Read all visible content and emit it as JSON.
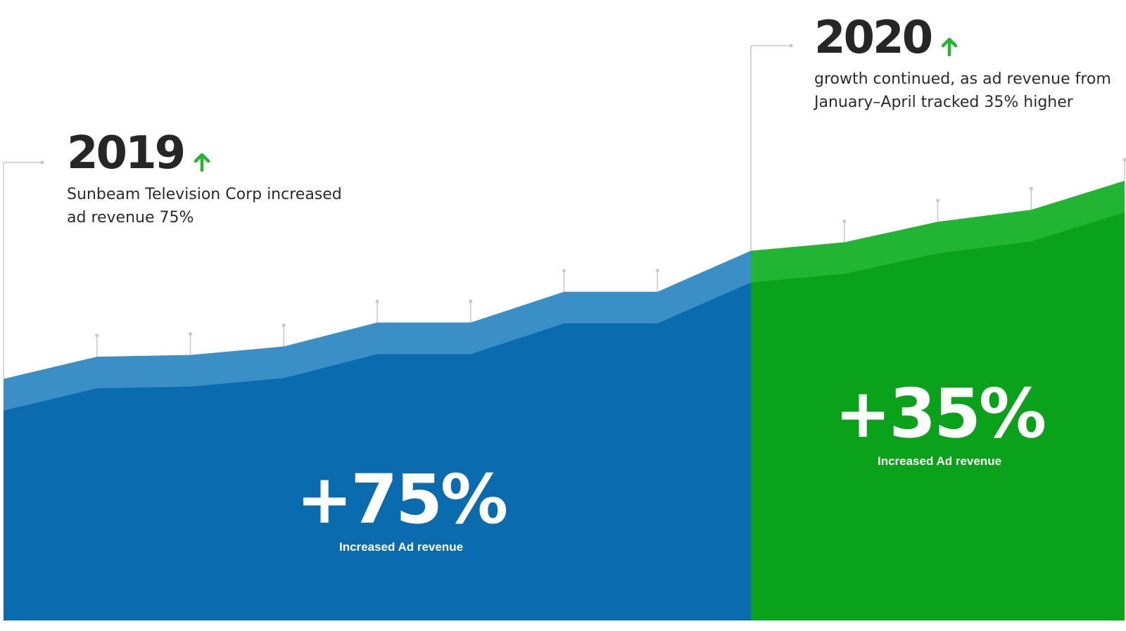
{
  "annotations": {
    "y2019": {
      "year": "2019",
      "line1": "Sunbeam Television Corp increased",
      "line2": "ad revenue 75%",
      "arrow_icon": "arrow-up-icon"
    },
    "y2020": {
      "year": "2020",
      "line1": "growth continued, as ad revenue from",
      "line2": "January–April tracked 35% higher",
      "arrow_icon": "arrow-up-icon"
    }
  },
  "highlights": {
    "y2019": {
      "value": "+75%",
      "label": "Increased Ad revenue"
    },
    "y2020": {
      "value": "+35%",
      "label": "Increased Ad revenue"
    }
  },
  "colors": {
    "blue_dark": "#0a6cae",
    "blue_light": "#3a8fc6",
    "green_dark": "#0aa11b",
    "green_light": "#22b531",
    "arrow_green": "#22b531",
    "marker_gray": "#c8c8c8"
  },
  "chart_data": {
    "type": "area",
    "segments": [
      {
        "period": "2019",
        "color": "blue",
        "values": [
          100,
          113,
          114,
          119,
          133,
          133,
          151,
          151,
          175
        ]
      },
      {
        "period": "2020",
        "color": "green",
        "values": [
          175,
          180,
          192,
          199,
          216
        ]
      }
    ],
    "ylim": [
      50,
      230
    ],
    "grid": false
  }
}
